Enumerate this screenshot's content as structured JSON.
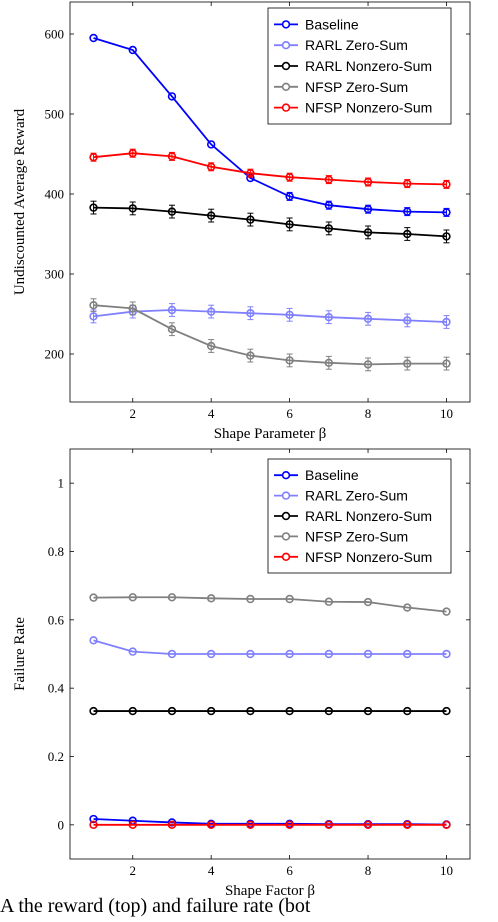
{
  "chart_data": [
    {
      "type": "line",
      "xlabel": "Shape Parameter β",
      "ylabel": "Undiscounted Average Reward",
      "xlim": [
        0.4,
        10.6
      ],
      "ylim": [
        140,
        640
      ],
      "xticks": [
        2,
        4,
        6,
        8,
        10
      ],
      "yticks": [
        200,
        300,
        400,
        500,
        600
      ],
      "grid": false,
      "legend_position": "top-right",
      "x": [
        1,
        2,
        3,
        4,
        5,
        6,
        7,
        8,
        9,
        10
      ],
      "series": [
        {
          "name": "Baseline",
          "color": "#0000ff",
          "values": [
            595,
            580,
            522,
            462,
            420,
            397,
            386,
            381,
            378,
            377
          ],
          "errors": [
            0,
            0,
            0,
            0,
            0,
            5,
            5,
            5,
            5,
            5
          ]
        },
        {
          "name": "RARL Zero-Sum",
          "color": "#8080ff",
          "values": [
            247,
            253,
            255,
            253,
            251,
            249,
            246,
            244,
            242,
            240
          ],
          "errors": [
            8,
            8,
            8,
            8,
            8,
            8,
            8,
            8,
            8,
            8
          ]
        },
        {
          "name": "RARL Nonzero-Sum",
          "color": "#000000",
          "values": [
            383,
            382,
            378,
            373,
            368,
            362,
            357,
            352,
            350,
            347
          ],
          "errors": [
            8,
            8,
            8,
            8,
            8,
            8,
            8,
            8,
            8,
            8
          ]
        },
        {
          "name": "NFSP Zero-Sum",
          "color": "#808080",
          "values": [
            261,
            257,
            231,
            210,
            198,
            192,
            189,
            187,
            188,
            188
          ],
          "errors": [
            8,
            8,
            8,
            8,
            8,
            8,
            8,
            8,
            8,
            8
          ]
        },
        {
          "name": "NFSP Nonzero-Sum",
          "color": "#ff0000",
          "values": [
            446,
            451,
            447,
            434,
            426,
            421,
            418,
            415,
            413,
            412
          ],
          "errors": [
            5,
            5,
            5,
            5,
            5,
            5,
            5,
            5,
            5,
            5
          ]
        }
      ]
    },
    {
      "type": "line",
      "xlabel": "Shape Factor β",
      "ylabel": "Failure Rate",
      "xlim": [
        0.4,
        10.6
      ],
      "ylim": [
        -0.1,
        1.1
      ],
      "xticks": [
        2,
        4,
        6,
        8,
        10
      ],
      "yticks": [
        0,
        0.2,
        0.4,
        0.6,
        0.8,
        1
      ],
      "grid": false,
      "legend_position": "top-right",
      "x": [
        1,
        2,
        3,
        4,
        5,
        6,
        7,
        8,
        9,
        10
      ],
      "series": [
        {
          "name": "Baseline",
          "color": "#0000ff",
          "values": [
            0.017,
            0.012,
            0.007,
            0.003,
            0.003,
            0.003,
            0.002,
            0.002,
            0.002,
            0.001
          ]
        },
        {
          "name": "RARL Zero-Sum",
          "color": "#8080ff",
          "values": [
            0.54,
            0.507,
            0.5,
            0.5,
            0.5,
            0.5,
            0.5,
            0.5,
            0.5,
            0.5
          ]
        },
        {
          "name": "RARL Nonzero-Sum",
          "color": "#000000",
          "values": [
            0.333,
            0.333,
            0.333,
            0.333,
            0.333,
            0.333,
            0.333,
            0.333,
            0.333,
            0.333
          ]
        },
        {
          "name": "NFSP Zero-Sum",
          "color": "#808080",
          "values": [
            0.665,
            0.666,
            0.666,
            0.663,
            0.661,
            0.661,
            0.653,
            0.652,
            0.636,
            0.624
          ]
        },
        {
          "name": "NFSP Nonzero-Sum",
          "color": "#ff0000",
          "values": [
            0.0,
            0.0,
            0.0,
            0.0,
            0.0,
            0.0,
            0.0,
            0.0,
            0.0,
            0.0
          ]
        }
      ]
    }
  ],
  "caption": "A                    the  reward  (top)  and  failure  rate  (bot"
}
